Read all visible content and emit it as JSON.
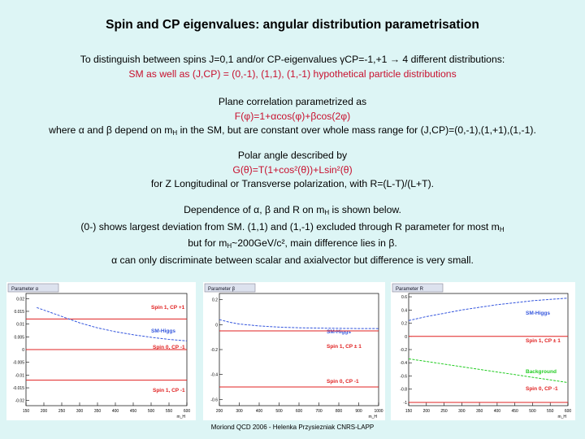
{
  "title": "Spin and CP eigenvalues: angular distribution parametrisation",
  "intro": {
    "line1": "To distinguish between spins J=0,1 and/or CP-eigenvalues γCP=-1,+1 → 4 different distributions:",
    "line2": "SM as well as (J,CP) = (0,-1), (1,1), (1,-1) hypothetical particle distributions"
  },
  "plane": {
    "line1": "Plane correlation parametrized as",
    "formula": "F(φ)=1+αcos(φ)+βcos(2φ)",
    "line3_a": "where α and β depend on m",
    "line3_sub": "H",
    "line3_b": " in the SM, but are constant over whole mass range for (J,CP)=(0,-1),(1,+1),(1,-1)."
  },
  "polar": {
    "line1": "Polar angle described by",
    "formula": "G(θ)=T(1+cos²(θ))+Lsin²(θ)",
    "line3": "for Z Longitudinal or Transverse polarization, with R=(L-T)/(L+T)."
  },
  "dependence": {
    "line1_a": "Dependence of α, β and R on m",
    "line1_sub": "H",
    "line1_b": " is shown below.",
    "line2_a": "(0-) shows largest deviation from SM. (1,1) and (1,-1) excluded through R parameter for most  m",
    "line2_sub": "H",
    "line3_a": "but for m",
    "line3_sub": "H",
    "line3_b": "~200GeV/c², main difference lies in β.",
    "line4": "α can only discriminate between scalar and axialvector but difference is very small."
  },
  "footer": "Moriond QCD 2006 - Helenka Przysiezniak CNRS-LAPP",
  "chart_data": [
    {
      "type": "line",
      "title": "Parameter α",
      "xlabel": "m_H",
      "x_ticks": [
        "150",
        "200",
        "250",
        "300",
        "350",
        "400",
        "450",
        "500",
        "550",
        "600"
      ],
      "y_ticks": [
        "0.02",
        "0.015",
        "0.01",
        "0.005",
        "0",
        "-0.005",
        "-0.01",
        "-0.015",
        "-0.02"
      ],
      "series": [
        {
          "name": "Spin 1, CP +1",
          "color": "#e02020",
          "kind": "constant",
          "value": 0.012
        },
        {
          "name": "SM-Higgs",
          "color": "#3355dd",
          "kind": "curve",
          "x": [
            180,
            220,
            260,
            300,
            350,
            400,
            450,
            500,
            550,
            600
          ],
          "y": [
            0.0165,
            0.0145,
            0.0125,
            0.0105,
            0.0085,
            0.007,
            0.0058,
            0.0048,
            0.004,
            0.0034
          ]
        },
        {
          "name": "Spin 0, CP -1",
          "color": "#e02020",
          "kind": "constant",
          "value": 0.0
        },
        {
          "name": "Spin 1, CP -1",
          "color": "#e02020",
          "kind": "constant",
          "value": -0.012
        }
      ]
    },
    {
      "type": "line",
      "title": "Parameter β",
      "xlabel": "m_H",
      "x_ticks": [
        "200",
        "300",
        "400",
        "500",
        "600",
        "700",
        "800",
        "900",
        "1000"
      ],
      "y_ticks": [
        "0.2",
        "0",
        "-0.2",
        "-0.4",
        "-0.6"
      ],
      "series": [
        {
          "name": "SM-Higgs",
          "color": "#3355dd",
          "kind": "curve",
          "x": [
            200,
            250,
            300,
            400,
            500,
            600,
            700,
            800,
            900,
            1000
          ],
          "y": [
            0.04,
            0.02,
            0.005,
            -0.01,
            -0.02,
            -0.025,
            -0.028,
            -0.03,
            -0.031,
            -0.032
          ]
        },
        {
          "name": "Spin 1, CP ± 1",
          "color": "#e02020",
          "kind": "constant",
          "value": -0.05
        },
        {
          "name": "Spin 0, CP -1",
          "color": "#e02020",
          "kind": "constant",
          "value": -0.5
        }
      ]
    },
    {
      "type": "line",
      "title": "Parameter R",
      "xlabel": "m_H",
      "x_ticks": [
        "150",
        "200",
        "250",
        "300",
        "350",
        "400",
        "450",
        "500",
        "550",
        "600"
      ],
      "y_ticks": [
        "0.6",
        "0.4",
        "0.2",
        "0",
        "-0.2",
        "-0.4",
        "-0.6",
        "-0.8",
        "-1"
      ],
      "series": [
        {
          "name": "SM-Higgs",
          "color": "#3355dd",
          "kind": "curve",
          "x": [
            150,
            200,
            250,
            300,
            350,
            400,
            450,
            500,
            550,
            600
          ],
          "y": [
            0.24,
            0.3,
            0.35,
            0.4,
            0.44,
            0.48,
            0.51,
            0.54,
            0.56,
            0.58
          ]
        },
        {
          "name": "Spin 1, CP ± 1",
          "color": "#e02020",
          "kind": "constant",
          "value": 0.0
        },
        {
          "name": "Background",
          "color": "#22cc22",
          "kind": "curve",
          "x": [
            150,
            200,
            250,
            300,
            350,
            400,
            450,
            500,
            550,
            600
          ],
          "y": [
            -0.34,
            -0.38,
            -0.42,
            -0.46,
            -0.5,
            -0.54,
            -0.58,
            -0.62,
            -0.66,
            -0.7
          ]
        },
        {
          "name": "Spin 0, CP -1",
          "color": "#e02020",
          "kind": "constant",
          "value": -1.0
        }
      ]
    }
  ]
}
